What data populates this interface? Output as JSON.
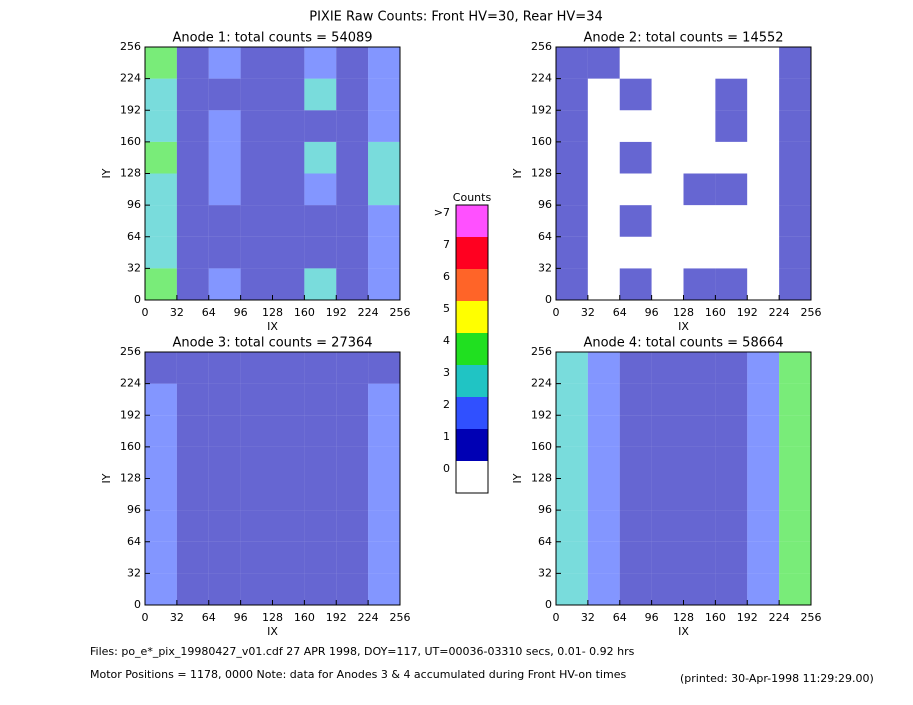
{
  "title": "PIXIE Raw Counts:  Front HV=30, Rear HV=34",
  "chart_data": [
    {
      "type": "heatmap",
      "title": "Anode 1: total counts = 54089",
      "xlabel": "IX",
      "ylabel": "IY",
      "xlim": [
        0,
        256
      ],
      "ylim": [
        0,
        256
      ],
      "xticks": [
        0,
        32,
        64,
        96,
        128,
        160,
        192,
        224,
        256
      ],
      "yticks": [
        0,
        32,
        64,
        96,
        128,
        160,
        192,
        224,
        256
      ],
      "values": [
        [
          4,
          1,
          2,
          1,
          1,
          3,
          1,
          2
        ],
        [
          3,
          1,
          1,
          1,
          1,
          1,
          1,
          2
        ],
        [
          3,
          1,
          1,
          1,
          1,
          1,
          1,
          2
        ],
        [
          3,
          1,
          2,
          1,
          1,
          2,
          1,
          3
        ],
        [
          4,
          1,
          2,
          1,
          1,
          3,
          1,
          3
        ],
        [
          3,
          1,
          2,
          1,
          1,
          1,
          1,
          2
        ],
        [
          3,
          1,
          1,
          1,
          1,
          3,
          1,
          2
        ],
        [
          4,
          1,
          2,
          1,
          1,
          2,
          1,
          2
        ]
      ]
    },
    {
      "type": "heatmap",
      "title": "Anode 2: total counts = 14552",
      "xlabel": "IX",
      "ylabel": "IY",
      "xlim": [
        0,
        256
      ],
      "ylim": [
        0,
        256
      ],
      "xticks": [
        0,
        32,
        64,
        96,
        128,
        160,
        192,
        224,
        256
      ],
      "yticks": [
        0,
        32,
        64,
        96,
        128,
        160,
        192,
        224,
        256
      ],
      "values": [
        [
          1,
          0,
          1,
          0,
          1,
          1,
          0,
          1
        ],
        [
          1,
          0,
          0,
          0,
          0,
          0,
          0,
          1
        ],
        [
          1,
          0,
          1,
          0,
          0,
          0,
          0,
          1
        ],
        [
          1,
          0,
          0,
          0,
          1,
          1,
          0,
          1
        ],
        [
          1,
          0,
          1,
          0,
          0,
          0,
          0,
          1
        ],
        [
          1,
          0,
          0,
          0,
          0,
          1,
          0,
          1
        ],
        [
          1,
          0,
          1,
          0,
          0,
          1,
          0,
          1
        ],
        [
          1,
          1,
          0,
          0,
          0,
          0,
          0,
          1
        ]
      ]
    },
    {
      "type": "heatmap",
      "title": "Anode 3: total counts = 27364",
      "xlabel": "IX",
      "ylabel": "IY",
      "xlim": [
        0,
        256
      ],
      "ylim": [
        0,
        256
      ],
      "xticks": [
        0,
        32,
        64,
        96,
        128,
        160,
        192,
        224,
        256
      ],
      "yticks": [
        0,
        32,
        64,
        96,
        128,
        160,
        192,
        224,
        256
      ],
      "values": [
        [
          2,
          1,
          1,
          1,
          1,
          1,
          1,
          2
        ],
        [
          2,
          1,
          1,
          1,
          1,
          1,
          1,
          2
        ],
        [
          2,
          1,
          1,
          1,
          1,
          1,
          1,
          2
        ],
        [
          2,
          1,
          1,
          1,
          1,
          1,
          1,
          2
        ],
        [
          2,
          1,
          1,
          1,
          1,
          1,
          1,
          2
        ],
        [
          2,
          1,
          1,
          1,
          1,
          1,
          1,
          2
        ],
        [
          2,
          1,
          1,
          1,
          1,
          1,
          1,
          2
        ],
        [
          1,
          1,
          1,
          1,
          1,
          1,
          1,
          1
        ]
      ]
    },
    {
      "type": "heatmap",
      "title": "Anode 4: total counts = 58664",
      "xlabel": "IX",
      "ylabel": "IY",
      "xlim": [
        0,
        256
      ],
      "ylim": [
        0,
        256
      ],
      "xticks": [
        0,
        32,
        64,
        96,
        128,
        160,
        192,
        224,
        256
      ],
      "yticks": [
        0,
        32,
        64,
        96,
        128,
        160,
        192,
        224,
        256
      ],
      "values": [
        [
          3,
          2,
          1,
          1,
          1,
          1,
          2,
          4
        ],
        [
          3,
          2,
          1,
          1,
          1,
          1,
          2,
          4
        ],
        [
          3,
          2,
          1,
          1,
          1,
          1,
          2,
          4
        ],
        [
          3,
          2,
          1,
          1,
          1,
          1,
          2,
          4
        ],
        [
          3,
          2,
          1,
          1,
          1,
          1,
          2,
          4
        ],
        [
          3,
          2,
          1,
          1,
          1,
          1,
          2,
          4
        ],
        [
          3,
          2,
          1,
          1,
          1,
          1,
          2,
          4
        ],
        [
          3,
          2,
          1,
          1,
          1,
          1,
          2,
          4
        ]
      ]
    }
  ],
  "colorbar": {
    "title": "Counts",
    "ticks": [
      0,
      1,
      2,
      3,
      4,
      5,
      6,
      7,
      {
        "value": 8,
        "label": ">7"
      }
    ],
    "colors": [
      "#ffffff",
      "#0000b4",
      "#3050ff",
      "#20c4c4",
      "#20e020",
      "#ffff00",
      "#ff6428",
      "#ff0020",
      "#ff50ff"
    ]
  },
  "footer": {
    "files": "Files: po_e*_pix_19980427_v01.cdf    27 APR 1998, DOY=117, UT=00036-03310 secs,  0.01- 0.92 hrs",
    "motor": "Motor Positions = 1178, 0000    Note: data for Anodes 3 & 4 accumulated during Front HV-on times",
    "printed": "(printed: 30-Apr-1998 11:29:29.00)"
  }
}
